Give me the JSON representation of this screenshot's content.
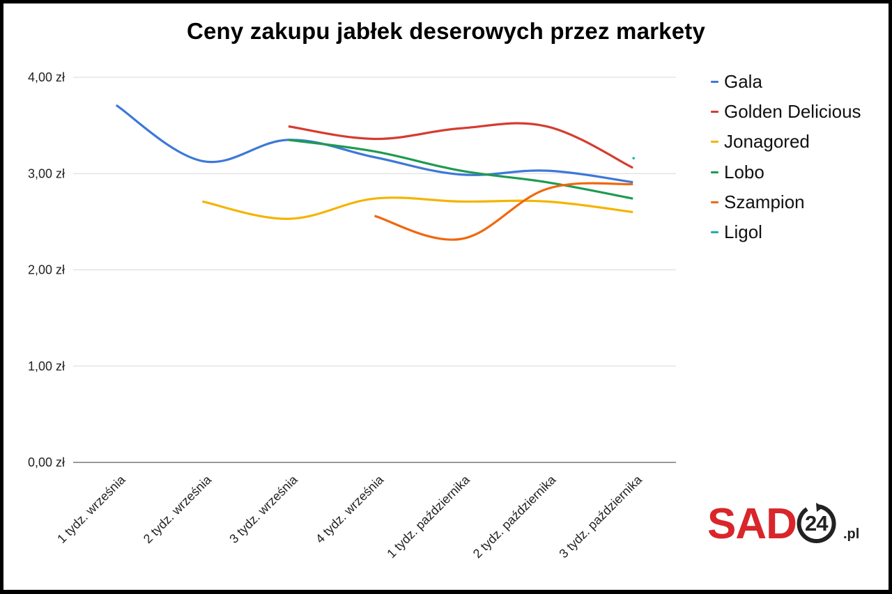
{
  "title": "Ceny zakupu jabłek deserowych przez markety",
  "logo": {
    "brand": "SAD",
    "number": "24",
    "suffix": ".pl",
    "brand_color": "#d8262a"
  },
  "chart_data": {
    "type": "line",
    "title": "Ceny zakupu jabłek deserowych przez markety",
    "xlabel": "",
    "ylabel": "",
    "categories": [
      "1 tydz. września",
      "2 tydz. września",
      "3 tydz. września",
      "4 tydz. września",
      "1 tydz. października",
      "2 tydz. października",
      "3 tydz. października"
    ],
    "y_ticks": [
      "0,00 zł",
      "1,00 zł",
      "2,00 zł",
      "3,00 zł",
      "4,00 zł"
    ],
    "ylim": [
      0,
      4
    ],
    "grid": true,
    "smooth": true,
    "legend_position": "right",
    "series": [
      {
        "name": "Gala",
        "color": "#3d78d8",
        "values": [
          3.71,
          3.13,
          3.35,
          3.17,
          2.99,
          3.03,
          2.91
        ]
      },
      {
        "name": "Golden Delicious",
        "color": "#d63b30",
        "values": [
          null,
          null,
          3.49,
          3.36,
          3.47,
          3.49,
          3.06
        ]
      },
      {
        "name": "Jonagored",
        "color": "#f4b400",
        "values": [
          null,
          2.71,
          2.53,
          2.74,
          2.71,
          2.71,
          2.6
        ]
      },
      {
        "name": "Lobo",
        "color": "#1e9a50",
        "values": [
          null,
          null,
          3.35,
          3.23,
          3.03,
          2.91,
          2.74
        ]
      },
      {
        "name": "Szampion",
        "color": "#f0670f",
        "values": [
          null,
          null,
          null,
          2.56,
          2.32,
          2.84,
          2.89
        ]
      },
      {
        "name": "Ligol",
        "color": "#19b3a6",
        "values": [
          null,
          null,
          null,
          null,
          null,
          null,
          3.16
        ]
      }
    ]
  }
}
